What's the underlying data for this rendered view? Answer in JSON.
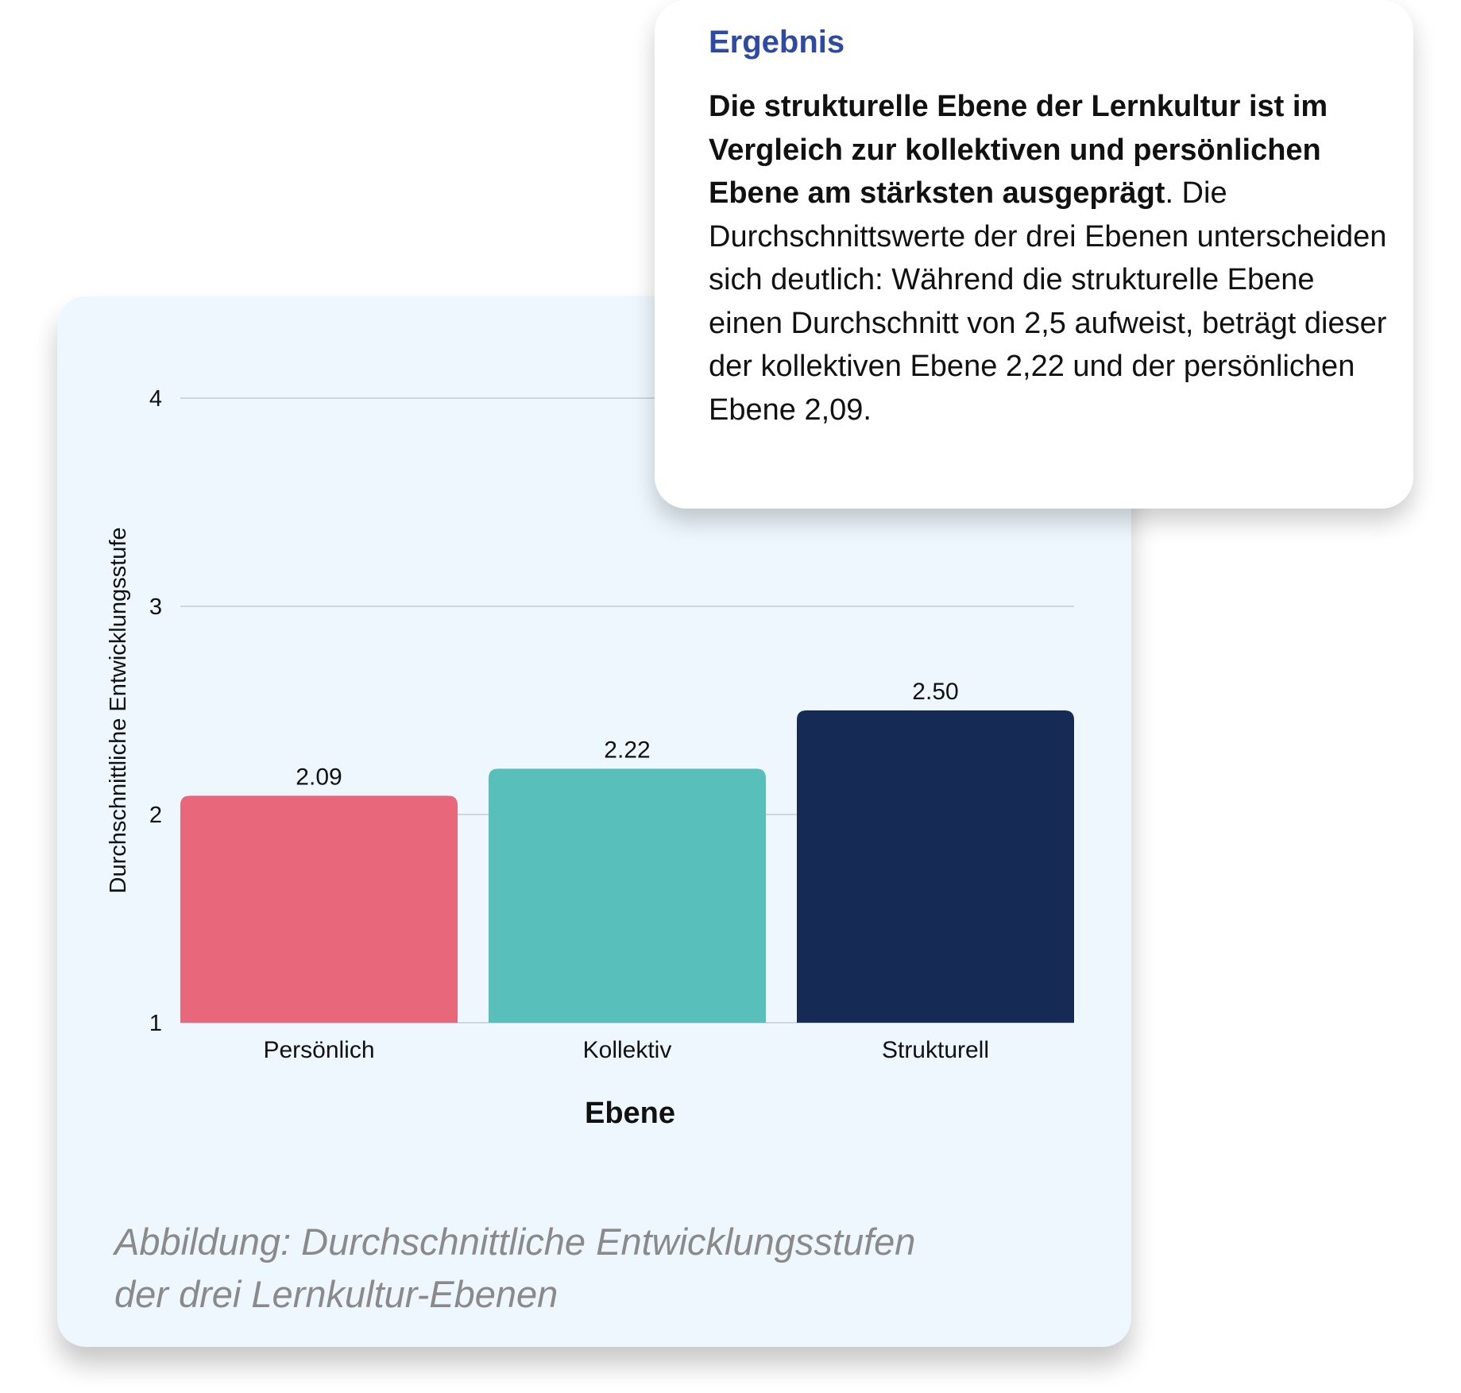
{
  "colors": {
    "card_background": "#edf7fd",
    "heading_accent": "#2f4aa5",
    "caption_text": "#8a8a8a",
    "gridline": "#c3ccd4"
  },
  "chart_data": {
    "type": "bar",
    "categories": [
      "Persönlich",
      "Kollektiv",
      "Strukturell"
    ],
    "values": [
      2.09,
      2.22,
      2.5
    ],
    "value_labels": [
      "2.09",
      "2.22",
      "2.50"
    ],
    "bar_colors": [
      "#e8677a",
      "#58bfba",
      "#152b55"
    ],
    "xlabel": "Ebene",
    "ylabel": "Durchschnittliche Entwicklungsstufe",
    "ylim": [
      1,
      4
    ],
    "yticks": [
      1,
      2,
      3,
      4
    ],
    "ytick_labels": [
      "1",
      "2",
      "3",
      "4"
    ],
    "grid": "horizontal"
  },
  "caption": {
    "line1": "Abbildung: Durchschnittliche Entwicklungsstufen",
    "line2": "der drei Lernkultur-Ebenen"
  },
  "result": {
    "heading": "Ergebnis",
    "bold_text": "Die strukturelle Ebene der Lernkultur ist im Vergleich zur kollektiven und persönlichen Ebene am stärksten ausgeprägt",
    "body_text": ". Die Durchschnittswerte der drei Ebenen unterscheiden sich deutlich: Während die strukturelle Ebene einen Durchschnitt von 2,5 aufweist, beträgt dieser der kollektiven Ebene 2,22 und der persönlichen Ebene 2,09."
  }
}
